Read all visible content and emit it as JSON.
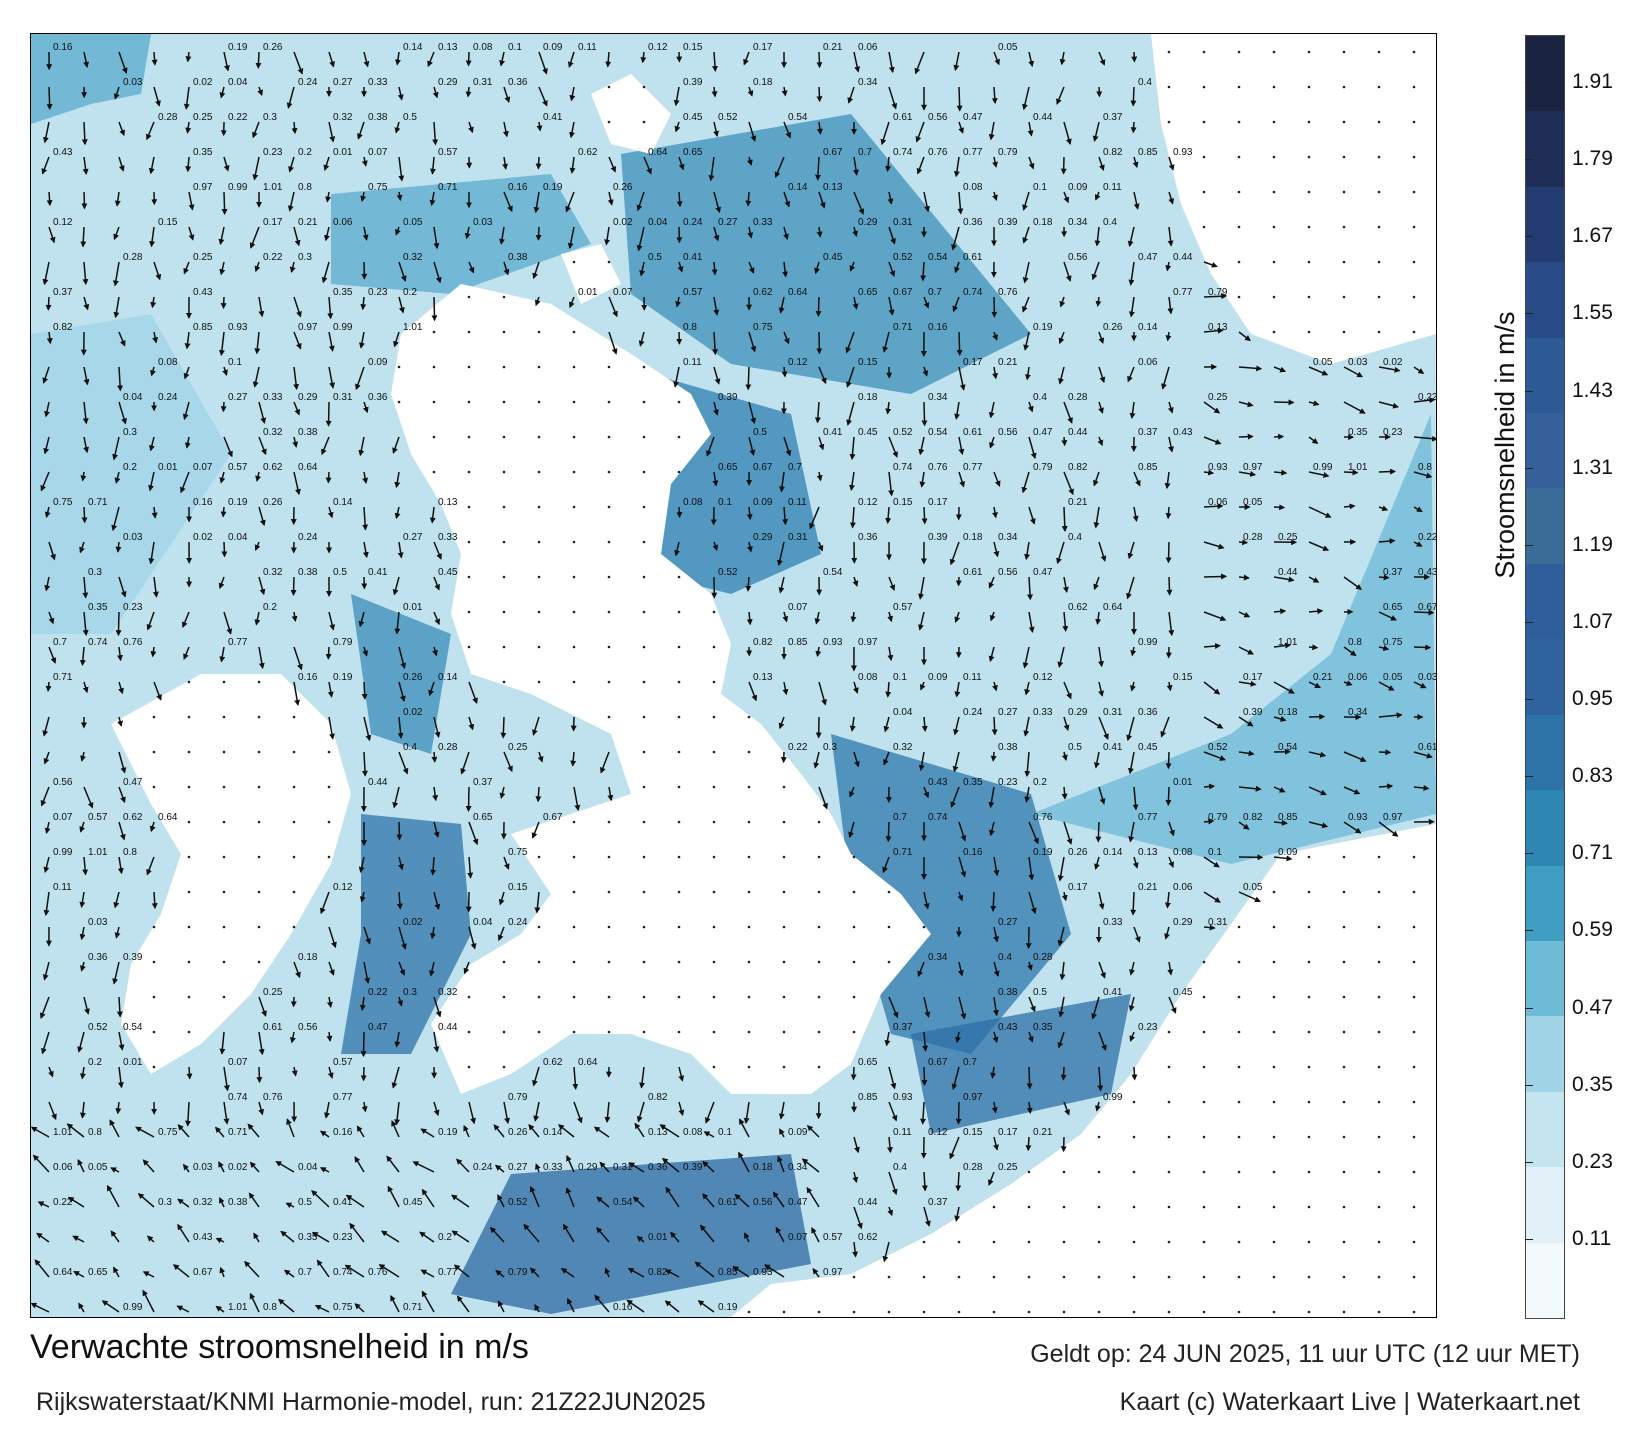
{
  "map": {
    "title": "Verwachte stroomsnelheid in m/s",
    "source": "Rijkswaterstaat/KNMI Harmonie-model, run: 21Z22JUN2025",
    "valid_time": "Geldt op: 24 JUN 2025, 11 uur UTC (12 uur MET)",
    "credit": "Kaart (c) Waterkaart Live | Waterkaart.net"
  },
  "colorbar": {
    "label": "Stroomsnelheid in m/s",
    "ticks": [
      "0.11",
      "0.23",
      "0.35",
      "0.47",
      "0.59",
      "0.71",
      "0.83",
      "0.95",
      "1.07",
      "1.19",
      "1.31",
      "1.43",
      "1.55",
      "1.67",
      "1.79",
      "1.91"
    ],
    "colors": [
      "#f4fafc",
      "#e2f1f7",
      "#c4e4ef",
      "#9fd3e5",
      "#6dbbd6",
      "#3f9dc2",
      "#2e86b3",
      "#2d73a8",
      "#2e63a0",
      "#2e5f9c",
      "#3a6c98",
      "#35609a",
      "#2d5a95",
      "#284a86",
      "#233d72",
      "#1e2e56",
      "#1a2440"
    ]
  },
  "current_labels": [
    "0.16",
    "0.19",
    "0.26",
    "0.14",
    "0.13",
    "0.08",
    "0.1",
    "0.09",
    "0.11",
    "0.12",
    "0.15",
    "0.17",
    "0.21",
    "0.06",
    "0.05",
    "0.03",
    "0.02",
    "0.04",
    "0.24",
    "0.27",
    "0.33",
    "0.29",
    "0.31",
    "0.36",
    "0.39",
    "0.18",
    "0.34",
    "0.4",
    "0.28",
    "0.25",
    "0.22",
    "0.3",
    "0.32",
    "0.38",
    "0.5",
    "0.41",
    "0.45",
    "0.52",
    "0.54",
    "0.61",
    "0.56",
    "0.47",
    "0.44",
    "0.37",
    "0.43",
    "0.35",
    "0.23",
    "0.2",
    "0.01",
    "0.07",
    "0.57",
    "0.62",
    "0.64",
    "0.65",
    "0.67",
    "0.7",
    "0.74",
    "0.76",
    "0.77",
    "0.79",
    "0.82",
    "0.85",
    "0.93",
    "0.97",
    "0.99",
    "1.01",
    "0.8",
    "0.75",
    "0.71"
  ]
}
